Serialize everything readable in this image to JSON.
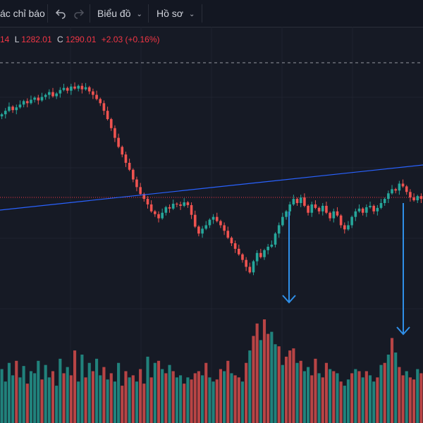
{
  "toolbar": {
    "indicators_label": "ác chỉ báo",
    "undo_icon": "undo-icon",
    "redo_icon": "redo-icon",
    "chart_label": "Biểu đồ",
    "profile_label": "Hồ sơ"
  },
  "legend": {
    "h_tail": "14",
    "l_key": "L",
    "low": "1282.01",
    "c_key": "C",
    "close": "1290.01",
    "change": "+2.03 (+0.16%)"
  },
  "colors": {
    "background": "#161a25",
    "up": "#26a69a",
    "down": "#ef5350",
    "trendline": "#2962ff",
    "arrow": "#2f8fe8",
    "dashed_line": "#9598a1",
    "price_line": "#f23645"
  },
  "chart_data": {
    "type": "candlestick",
    "title": "",
    "series": [
      {
        "name": "price",
        "close": [
          1290,
          1295,
          1301,
          1296,
          1300,
          1304,
          1309,
          1306,
          1311,
          1314,
          1310,
          1315,
          1318,
          1322,
          1316,
          1320,
          1325,
          1328,
          1324,
          1330,
          1327,
          1331,
          1326,
          1329,
          1323,
          1318,
          1312,
          1306,
          1295,
          1283,
          1270,
          1256,
          1243,
          1232,
          1220,
          1210,
          1196,
          1185,
          1175,
          1168,
          1160,
          1150,
          1146,
          1140,
          1148,
          1156,
          1154,
          1161,
          1160,
          1158,
          1163,
          1159,
          1145,
          1128,
          1118,
          1125,
          1130,
          1138,
          1142,
          1136,
          1130,
          1122,
          1112,
          1104,
          1096,
          1088,
          1080,
          1070,
          1062,
          1078,
          1090,
          1084,
          1094,
          1099,
          1102,
          1118,
          1130,
          1142,
          1150,
          1160,
          1168,
          1162,
          1170,
          1158,
          1148,
          1160,
          1155,
          1150,
          1158,
          1148,
          1140,
          1150,
          1144,
          1130,
          1124,
          1130,
          1142,
          1150,
          1154,
          1148,
          1156,
          1158,
          1150,
          1155,
          1162,
          1168,
          1176,
          1182,
          1180,
          1190,
          1186,
          1178,
          1170,
          1166,
          1172,
          1168
        ]
      }
    ],
    "volume": [
      52,
      40,
      58,
      46,
      60,
      44,
      55,
      38,
      50,
      48,
      60,
      42,
      56,
      44,
      50,
      36,
      62,
      48,
      54,
      46,
      70,
      40,
      66,
      44,
      58,
      50,
      62,
      46,
      54,
      42,
      48,
      40,
      58,
      36,
      50,
      44,
      46,
      40,
      52,
      38,
      64,
      44,
      58,
      60,
      52,
      48,
      56,
      50,
      44,
      46,
      38,
      44,
      42,
      48,
      50,
      46,
      58,
      44,
      40,
      42,
      52,
      50,
      60,
      48,
      46,
      44,
      40,
      58,
      70,
      84,
      96,
      80,
      100,
      86,
      88,
      76,
      74,
      56,
      64,
      70,
      72,
      58,
      60,
      50,
      54,
      46,
      62,
      48,
      44,
      58,
      52,
      50,
      48,
      40,
      36,
      42,
      48,
      52,
      50,
      44,
      50,
      46,
      40,
      44,
      56,
      58,
      66,
      82,
      68,
      54,
      46,
      50,
      44,
      42,
      52,
      48
    ],
    "volume_up": [
      true,
      true,
      true,
      true,
      false,
      true,
      true,
      false,
      true,
      true,
      true,
      false,
      true,
      true,
      false,
      true,
      true,
      false,
      true,
      false,
      false,
      true,
      true,
      false,
      true,
      false,
      true,
      true,
      false,
      true,
      false,
      true,
      true,
      false,
      false,
      true,
      false,
      true,
      false,
      false,
      true,
      false,
      true,
      false,
      true,
      false,
      true,
      false,
      true,
      true,
      false,
      true,
      false,
      false,
      false,
      true,
      false,
      true,
      true,
      false,
      false,
      true,
      false,
      true,
      false,
      false,
      true,
      false,
      true,
      false,
      false,
      true,
      false,
      false,
      true,
      true,
      false,
      true,
      false,
      false,
      false,
      true,
      false,
      true,
      true,
      false,
      false,
      true,
      false,
      false,
      true,
      false,
      true,
      false,
      true,
      true,
      false,
      true,
      false,
      true,
      false,
      true,
      true,
      false,
      true,
      false,
      true,
      false,
      true,
      false,
      false,
      true,
      false,
      false,
      true,
      false
    ]
  }
}
